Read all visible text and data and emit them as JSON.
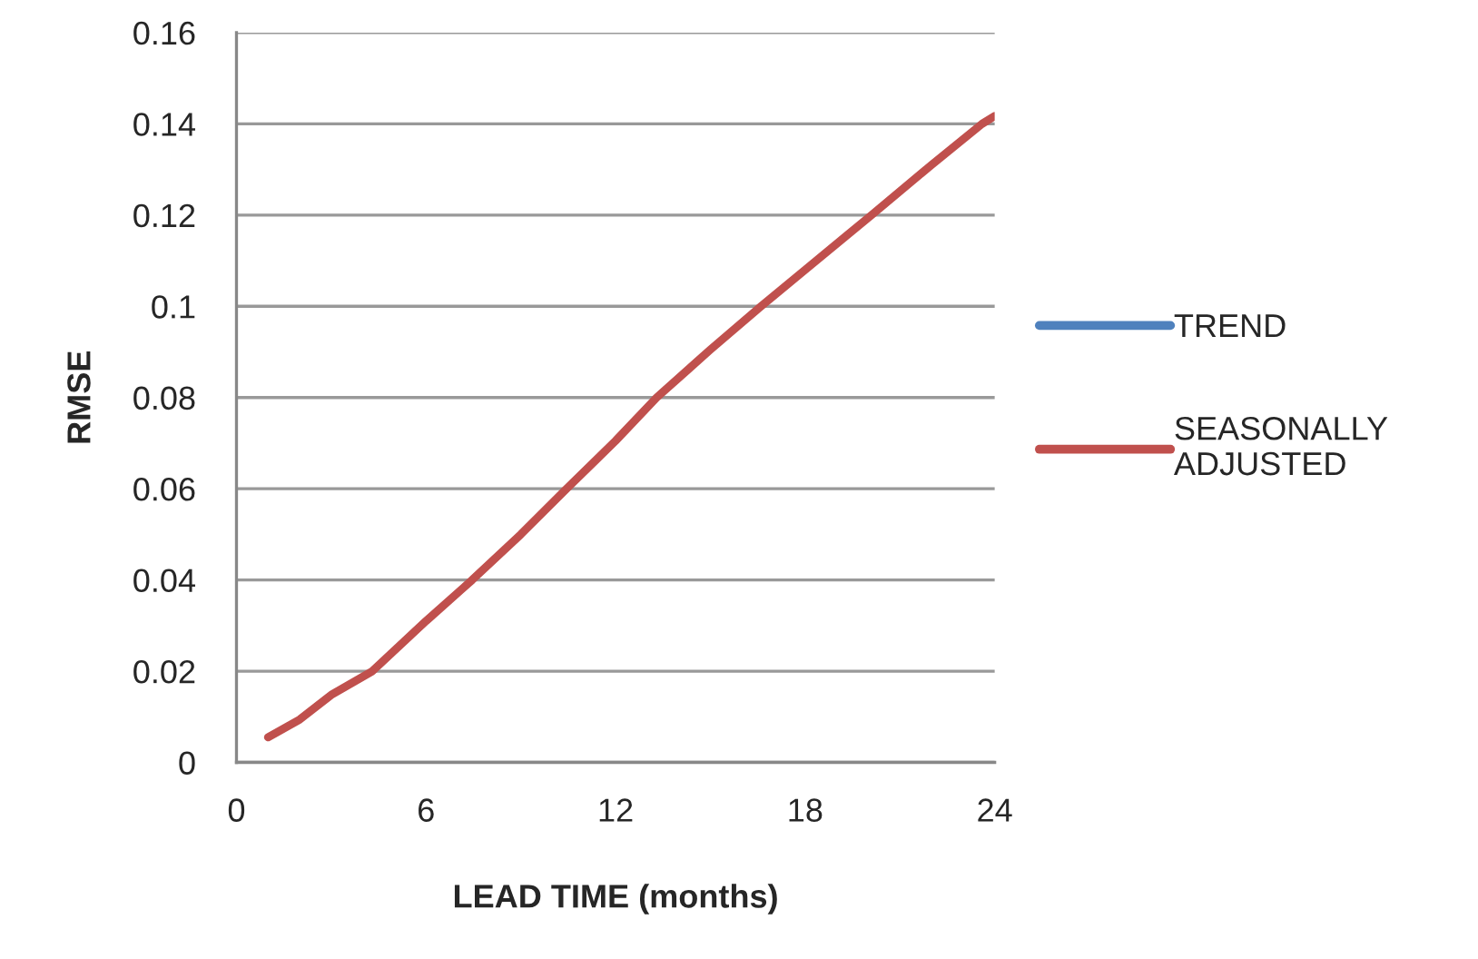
{
  "chart_data": {
    "type": "line",
    "xlabel": "LEAD TIME (months)",
    "ylabel": "RMSE",
    "xlim": [
      0,
      24
    ],
    "xticks": [
      0,
      6,
      12,
      18,
      24
    ],
    "ylim": [
      0,
      0.16
    ],
    "yticks": [
      0,
      0.02,
      0.04,
      0.06,
      0.08,
      0.1,
      0.12,
      0.14,
      0.16
    ],
    "grid": "y",
    "legend": "right",
    "line_style": "solid",
    "marker": "none",
    "series": [
      {
        "name": "TREND",
        "color": "#4f81bd"
      },
      {
        "name": "SEASONALLY\nADJUSTED",
        "color": "#c0504d",
        "x": [
          1,
          2,
          3,
          4.3,
          6,
          7.46,
          9,
          10.45,
          12,
          13.3,
          15,
          16.6,
          18,
          20.1,
          22,
          23.6,
          24
        ],
        "values": [
          0.0055,
          0.0094,
          0.0148,
          0.02,
          0.031,
          0.04,
          0.05,
          0.06,
          0.0705,
          0.08,
          0.0905,
          0.1,
          0.108,
          0.12,
          0.131,
          0.14,
          0.1417
        ]
      }
    ]
  }
}
